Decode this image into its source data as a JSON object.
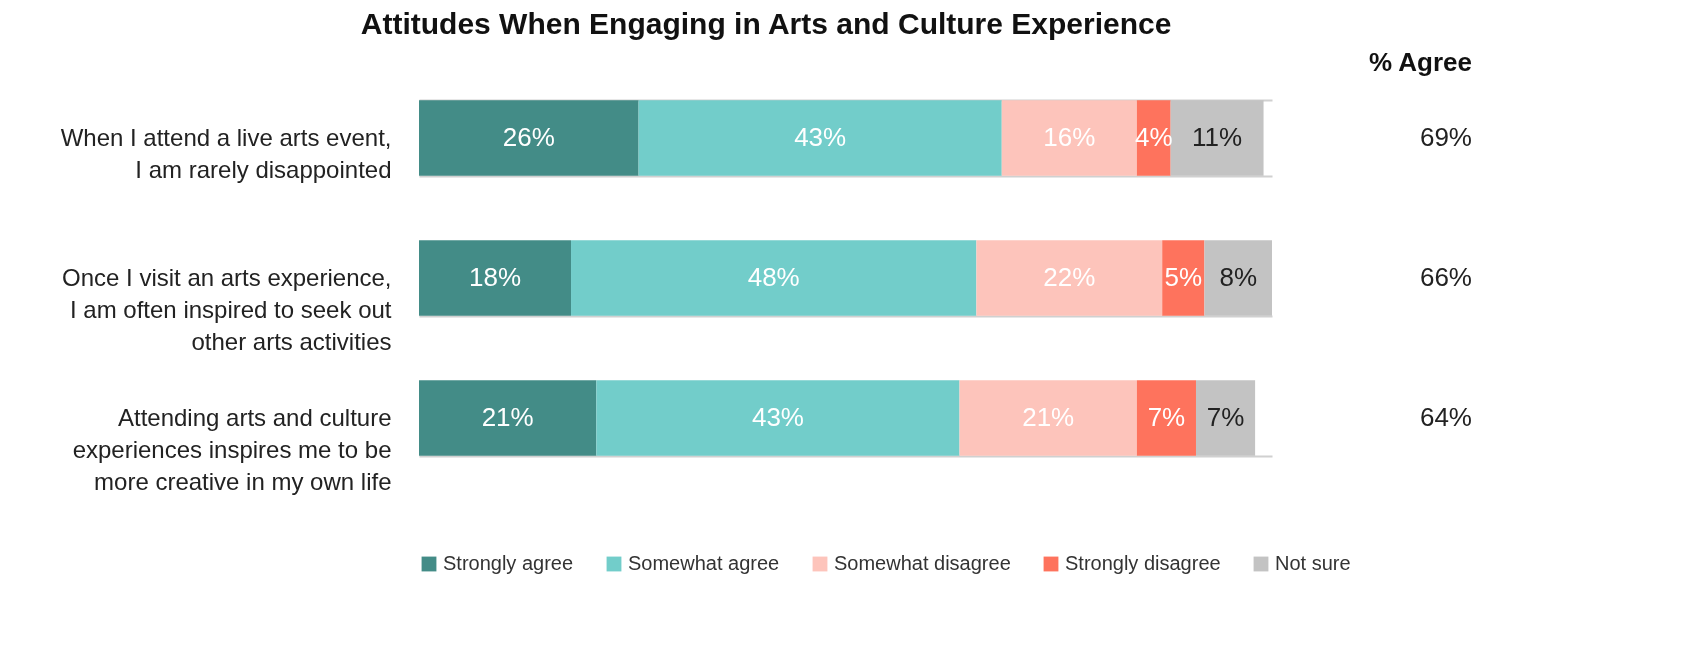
{
  "chart_data": {
    "type": "bar",
    "title": "Attitudes When Engaging in Arts and Culture Experience",
    "orientation": "horizontal",
    "stacked": true,
    "categories": [
      "When I attend a live arts event,\nI am rarely disappointed",
      "Once I visit an arts experience,\nI am often inspired to seek out\nother arts activities",
      "Attending arts and culture\nexperiences inspires me to be\nmore creative in my own life"
    ],
    "series": [
      {
        "name": "Strongly agree",
        "color": "#438c87",
        "values": [
          26,
          18,
          21
        ],
        "value_labels": [
          "26%",
          "18%",
          "21%"
        ]
      },
      {
        "name": "Somewhat agree",
        "color": "#72cdca",
        "values": [
          43,
          48,
          43
        ],
        "value_labels": [
          "43%",
          "48%",
          "43%"
        ]
      },
      {
        "name": "Somewhat disagree",
        "color": "#fdc4bb",
        "values": [
          16,
          22,
          21
        ],
        "value_labels": [
          "16%",
          "22%",
          "21%"
        ]
      },
      {
        "name": "Strongly disagree",
        "color": "#fe735d",
        "values": [
          4,
          5,
          7
        ],
        "value_labels": [
          "4%",
          "5%",
          "7%"
        ]
      },
      {
        "name": "Not sure",
        "color": "#c3c3c3",
        "values": [
          11,
          8,
          7
        ],
        "value_labels": [
          "11%",
          "8%",
          "7%"
        ]
      }
    ],
    "annotations": [
      "% Agree",
      "69%",
      "66%",
      "64%"
    ],
    "legend": "bottom",
    "grid": "y",
    "tick_labels": "y"
  }
}
